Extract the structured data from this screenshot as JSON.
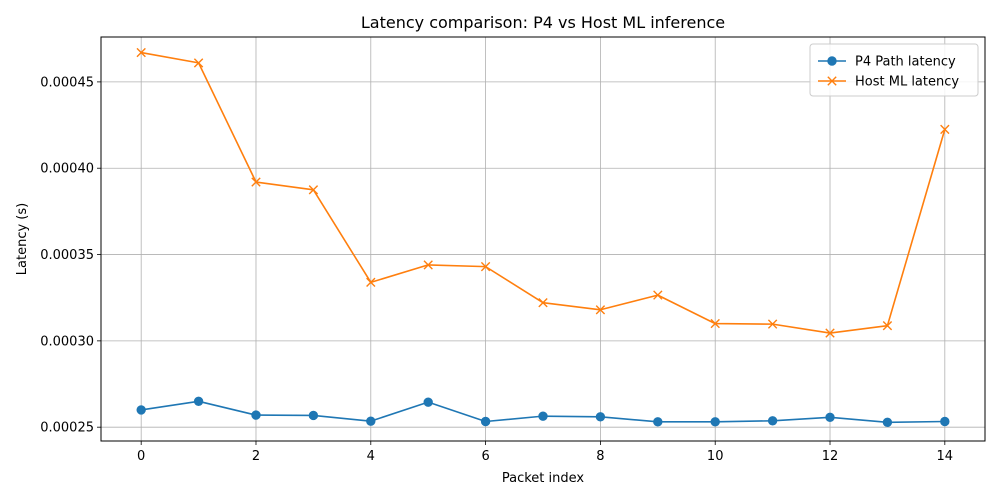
{
  "chart_data": {
    "type": "line",
    "title": "Latency comparison: P4 vs Host ML inference",
    "xlabel": "Packet index",
    "ylabel": "Latency (s)",
    "x": [
      0,
      1,
      2,
      3,
      4,
      5,
      6,
      7,
      8,
      9,
      10,
      11,
      12,
      13,
      14
    ],
    "xlim": [
      -0.7,
      14.7
    ],
    "ylim": [
      0.000242,
      0.000476
    ],
    "x_ticks": [
      0,
      2,
      4,
      6,
      8,
      10,
      12,
      14
    ],
    "y_ticks": [
      0.00025,
      0.0003,
      0.00035,
      0.0004,
      0.00045
    ],
    "x_tick_labels": [
      "0",
      "2",
      "4",
      "6",
      "8",
      "10",
      "12",
      "14"
    ],
    "y_tick_labels": [
      "0.00025",
      "0.00030",
      "0.00035",
      "0.00040",
      "0.00045"
    ],
    "grid": true,
    "legend_position": "top-right",
    "series": [
      {
        "name": "P4 Path latency",
        "color": "#1f77b4",
        "marker": "circle",
        "values": [
          0.00026,
          0.000265,
          0.000257,
          0.0002568,
          0.0002535,
          0.0002645,
          0.0002533,
          0.0002564,
          0.000256,
          0.0002531,
          0.0002531,
          0.0002537,
          0.0002557,
          0.0002528,
          0.0002533
        ]
      },
      {
        "name": "Host ML latency",
        "color": "#ff7f0e",
        "marker": "x",
        "values": [
          0.000467,
          0.000461,
          0.000392,
          0.0003875,
          0.0003339,
          0.000344,
          0.000343,
          0.0003221,
          0.000318,
          0.0003265,
          0.00031,
          0.0003097,
          0.0003045,
          0.0003088,
          0.0004225
        ]
      }
    ]
  }
}
